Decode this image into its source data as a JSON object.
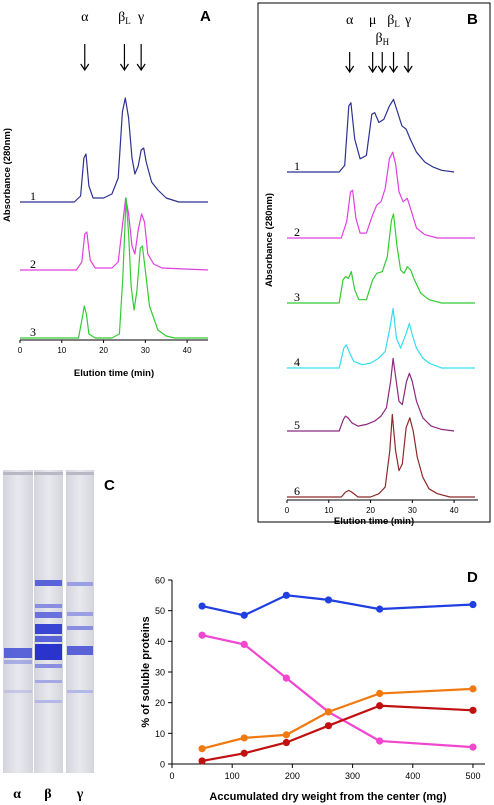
{
  "panel_labels": {
    "a": "A",
    "b": "B",
    "c": "C",
    "d": "D"
  },
  "chart_data": [
    {
      "panel": "A",
      "type": "line",
      "xlabel": "Elution time (min)",
      "ylabel": "Absorbance (280nm)",
      "xlim": [
        0,
        45
      ],
      "x_ticks": [
        "0",
        "10",
        "20",
        "30",
        "40"
      ],
      "peak_labels": [
        {
          "text": "α",
          "sub": "",
          "x": 15.5
        },
        {
          "text": "β",
          "sub": "L",
          "x": 25
        },
        {
          "text": "γ",
          "sub": "",
          "x": 29
        }
      ],
      "series": [
        {
          "name": "1",
          "color": "#2e3192",
          "points": [
            [
              0,
              0
            ],
            [
              13,
              0
            ],
            [
              14.5,
              3
            ],
            [
              15.3,
              22
            ],
            [
              15.8,
              24
            ],
            [
              16.5,
              8
            ],
            [
              17.5,
              2
            ],
            [
              20,
              2
            ],
            [
              22,
              4
            ],
            [
              23.5,
              12
            ],
            [
              24.5,
              45
            ],
            [
              25.2,
              52
            ],
            [
              26,
              42
            ],
            [
              26.8,
              22
            ],
            [
              27.5,
              14
            ],
            [
              28.3,
              18
            ],
            [
              29,
              26
            ],
            [
              29.6,
              27
            ],
            [
              30.2,
              20
            ],
            [
              31.5,
              10
            ],
            [
              33,
              6
            ],
            [
              35,
              2
            ],
            [
              38,
              0
            ],
            [
              45,
              0
            ]
          ]
        },
        {
          "name": "2",
          "color": "#e040e0",
          "points": [
            [
              0,
              0
            ],
            [
              13.5,
              0
            ],
            [
              14.8,
              4
            ],
            [
              15.5,
              18
            ],
            [
              16,
              19
            ],
            [
              16.8,
              5
            ],
            [
              18,
              1
            ],
            [
              22,
              1
            ],
            [
              23.5,
              4
            ],
            [
              24.5,
              22
            ],
            [
              25.3,
              36
            ],
            [
              26,
              28
            ],
            [
              26.8,
              12
            ],
            [
              27.5,
              8
            ],
            [
              28.3,
              20
            ],
            [
              29.1,
              28
            ],
            [
              29.8,
              24
            ],
            [
              30.6,
              8
            ],
            [
              32,
              3
            ],
            [
              34,
              1
            ],
            [
              45,
              0
            ]
          ]
        },
        {
          "name": "3",
          "color": "#33cc33",
          "points": [
            [
              0,
              0
            ],
            [
              14,
              0
            ],
            [
              14.9,
              10
            ],
            [
              15.4,
              16
            ],
            [
              15.9,
              12
            ],
            [
              16.5,
              2
            ],
            [
              18,
              0
            ],
            [
              22,
              0
            ],
            [
              23.8,
              2
            ],
            [
              24.6,
              30
            ],
            [
              25.4,
              70
            ],
            [
              26,
              52
            ],
            [
              26.6,
              26
            ],
            [
              27.3,
              14
            ],
            [
              28,
              24
            ],
            [
              28.8,
              45
            ],
            [
              29.3,
              46
            ],
            [
              30,
              34
            ],
            [
              31,
              16
            ],
            [
              33,
              4
            ],
            [
              35,
              1
            ],
            [
              37,
              0
            ],
            [
              45,
              0
            ]
          ]
        }
      ]
    },
    {
      "panel": "B",
      "type": "line",
      "xlabel": "Elution time (min)",
      "ylabel": "Absorbance (280nm)",
      "xlim": [
        0,
        45
      ],
      "x_ticks": [
        "0",
        "10",
        "20",
        "30",
        "40"
      ],
      "peak_labels": [
        {
          "text": "α",
          "sub": "",
          "x": 15
        },
        {
          "text": "μ",
          "sub": "",
          "x": 20.5
        },
        {
          "text": "β",
          "sub": "H",
          "x": 22.8
        },
        {
          "text": "β",
          "sub": "L",
          "x": 25.5
        },
        {
          "text": "γ",
          "sub": "",
          "x": 29
        }
      ],
      "series": [
        {
          "name": "1",
          "color": "#2e3192",
          "points": [
            [
              0,
              0
            ],
            [
              12.5,
              0
            ],
            [
              13.8,
              4
            ],
            [
              14.8,
              40
            ],
            [
              15.3,
              42
            ],
            [
              16.2,
              20
            ],
            [
              17.5,
              8
            ],
            [
              19,
              10
            ],
            [
              20.3,
              35
            ],
            [
              21,
              36
            ],
            [
              22,
              30
            ],
            [
              23.2,
              32
            ],
            [
              24.5,
              40
            ],
            [
              25.5,
              44
            ],
            [
              26.5,
              36
            ],
            [
              27.5,
              28
            ],
            [
              28.5,
              26
            ],
            [
              29.5,
              20
            ],
            [
              31,
              12
            ],
            [
              33,
              6
            ],
            [
              35,
              3
            ],
            [
              37,
              1
            ],
            [
              40,
              0
            ]
          ]
        },
        {
          "name": "2",
          "color": "#e040e0",
          "points": [
            [
              0,
              0
            ],
            [
              13,
              0
            ],
            [
              14.3,
              10
            ],
            [
              15.2,
              28
            ],
            [
              15.7,
              29
            ],
            [
              16.5,
              12
            ],
            [
              17.5,
              3
            ],
            [
              19,
              3
            ],
            [
              20.5,
              14
            ],
            [
              21.5,
              20
            ],
            [
              22.5,
              22
            ],
            [
              23.5,
              30
            ],
            [
              24.5,
              48
            ],
            [
              25.3,
              52
            ],
            [
              26,
              45
            ],
            [
              26.8,
              28
            ],
            [
              27.8,
              22
            ],
            [
              28.8,
              24
            ],
            [
              29.8,
              16
            ],
            [
              31,
              6
            ],
            [
              33,
              2
            ],
            [
              36,
              0
            ],
            [
              45,
              0
            ]
          ]
        },
        {
          "name": "3",
          "color": "#33cc33",
          "points": [
            [
              0,
              0
            ],
            [
              12.5,
              0
            ],
            [
              13.4,
              14
            ],
            [
              14,
              16
            ],
            [
              14.7,
              15
            ],
            [
              15.4,
              19
            ],
            [
              16.2,
              8
            ],
            [
              17.2,
              2
            ],
            [
              19,
              2
            ],
            [
              20.5,
              14
            ],
            [
              21.5,
              18
            ],
            [
              22.8,
              19
            ],
            [
              24,
              28
            ],
            [
              25,
              50
            ],
            [
              25.5,
              54
            ],
            [
              26.3,
              35
            ],
            [
              27.2,
              20
            ],
            [
              28,
              18
            ],
            [
              28.8,
              22
            ],
            [
              29.6,
              20
            ],
            [
              30.5,
              14
            ],
            [
              32,
              6
            ],
            [
              34,
              2
            ],
            [
              37,
              0
            ],
            [
              45,
              0
            ]
          ]
        },
        {
          "name": "4",
          "color": "#33ddee",
          "points": [
            [
              0,
              0
            ],
            [
              12.5,
              0
            ],
            [
              13.6,
              12
            ],
            [
              14.2,
              14
            ],
            [
              15,
              9
            ],
            [
              16,
              4
            ],
            [
              18,
              2
            ],
            [
              20,
              3
            ],
            [
              22,
              6
            ],
            [
              23.5,
              10
            ],
            [
              24.6,
              24
            ],
            [
              25.4,
              36
            ],
            [
              26.2,
              18
            ],
            [
              27.2,
              12
            ],
            [
              28.4,
              20
            ],
            [
              29.3,
              27
            ],
            [
              30,
              20
            ],
            [
              31,
              12
            ],
            [
              32.5,
              6
            ],
            [
              34,
              3
            ],
            [
              37,
              0
            ],
            [
              45,
              0
            ]
          ]
        },
        {
          "name": "5",
          "color": "#8b2a7e",
          "points": [
            [
              0,
              0
            ],
            [
              12.5,
              0
            ],
            [
              13.5,
              7
            ],
            [
              14,
              9
            ],
            [
              14.6,
              8
            ],
            [
              15.5,
              5
            ],
            [
              17,
              3
            ],
            [
              19,
              4
            ],
            [
              21,
              6
            ],
            [
              22.5,
              9
            ],
            [
              23.8,
              14
            ],
            [
              24.8,
              30
            ],
            [
              25.4,
              44
            ],
            [
              26,
              33
            ],
            [
              26.8,
              18
            ],
            [
              27.6,
              16
            ],
            [
              28.6,
              30
            ],
            [
              29.3,
              35
            ],
            [
              30,
              30
            ],
            [
              31,
              18
            ],
            [
              32.5,
              8
            ],
            [
              34.5,
              3
            ],
            [
              37,
              1
            ],
            [
              40,
              0
            ]
          ]
        },
        {
          "name": "6",
          "color": "#8b2a2a",
          "points": [
            [
              0,
              0
            ],
            [
              13,
              0
            ],
            [
              14,
              3
            ],
            [
              14.8,
              4
            ],
            [
              15.5,
              3
            ],
            [
              17,
              0
            ],
            [
              20,
              0
            ],
            [
              22,
              2
            ],
            [
              23.5,
              6
            ],
            [
              24.6,
              28
            ],
            [
              25.2,
              50
            ],
            [
              26,
              28
            ],
            [
              26.8,
              16
            ],
            [
              27.6,
              20
            ],
            [
              28.5,
              42
            ],
            [
              29.4,
              48
            ],
            [
              30.2,
              40
            ],
            [
              31.2,
              24
            ],
            [
              32.5,
              12
            ],
            [
              34,
              5
            ],
            [
              36,
              2
            ],
            [
              39,
              0
            ],
            [
              45,
              0
            ]
          ]
        }
      ]
    },
    {
      "panel": "D",
      "type": "line",
      "xlabel": "Accumulated dry weight from the center (mg)",
      "ylabel": "% of soluble proteins",
      "xlim": [
        0,
        520
      ],
      "ylim": [
        0,
        60
      ],
      "x_ticks": [
        0,
        100,
        200,
        300,
        400,
        500
      ],
      "y_ticks": [
        0,
        10,
        20,
        30,
        40,
        50,
        60
      ],
      "grid": false,
      "series": [
        {
          "color": "#1f3fe0",
          "x": [
            50,
            120,
            190,
            260,
            345,
            500
          ],
          "values": [
            51.5,
            48.5,
            55,
            53.5,
            50.5,
            52
          ]
        },
        {
          "color": "#f046d0",
          "x": [
            50,
            120,
            190,
            260,
            345,
            500
          ],
          "values": [
            42,
            39,
            28,
            17,
            7.5,
            5.5
          ]
        },
        {
          "color": "#f07a10",
          "x": [
            50,
            120,
            190,
            260,
            345,
            500
          ],
          "values": [
            5,
            8.5,
            9.5,
            17,
            23,
            24.5
          ]
        },
        {
          "color": "#c01010",
          "x": [
            50,
            120,
            190,
            260,
            345,
            500
          ],
          "values": [
            1,
            3.5,
            7,
            12.5,
            19,
            17.5
          ]
        }
      ]
    }
  ],
  "gel": {
    "lane_labels": [
      "α",
      "β",
      "γ"
    ]
  }
}
